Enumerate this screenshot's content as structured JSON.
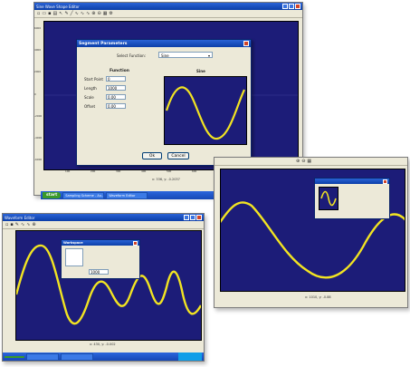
{
  "main_window": {
    "title": "Sine Wave Shape Editor",
    "status": "x: 336, y: -0.2037",
    "y_ticks": [
      "6000",
      "4000",
      "2000",
      "0",
      "-2000",
      "-4000",
      "-6000"
    ],
    "x_ticks": [
      "100",
      "200",
      "300",
      "400",
      "500",
      "600",
      "700",
      "800",
      "900",
      "1000"
    ]
  },
  "dialog": {
    "title": "Segment Parameters",
    "select_label": "Select Function:",
    "select_value": "Sine",
    "section_title": "Function",
    "fields": [
      {
        "label": "Start Point",
        "value": "0"
      },
      {
        "label": "Length",
        "value": "1000"
      },
      {
        "label": "Scale",
        "value": "0.00"
      },
      {
        "label": "Offset",
        "value": "0.00"
      }
    ],
    "preview_title": "Sine",
    "ok_label": "Ok",
    "cancel_label": "Cancel"
  },
  "taskbar_main": {
    "start_label": "start",
    "tasks": [
      "Sampling Scheme - Au...",
      "Waveform Editor"
    ],
    "clock": "11:33 AM"
  },
  "win2": {
    "status": "x: 1010, y: -0.88"
  },
  "win3": {
    "title": "Waveform Editor",
    "status": "x: 430, y: -0.002",
    "mini_dialog_title": "Workspace",
    "mini_value": "1000"
  },
  "colors": {
    "plot_bg": "#1c1c78",
    "waveform": "#f2e422"
  }
}
